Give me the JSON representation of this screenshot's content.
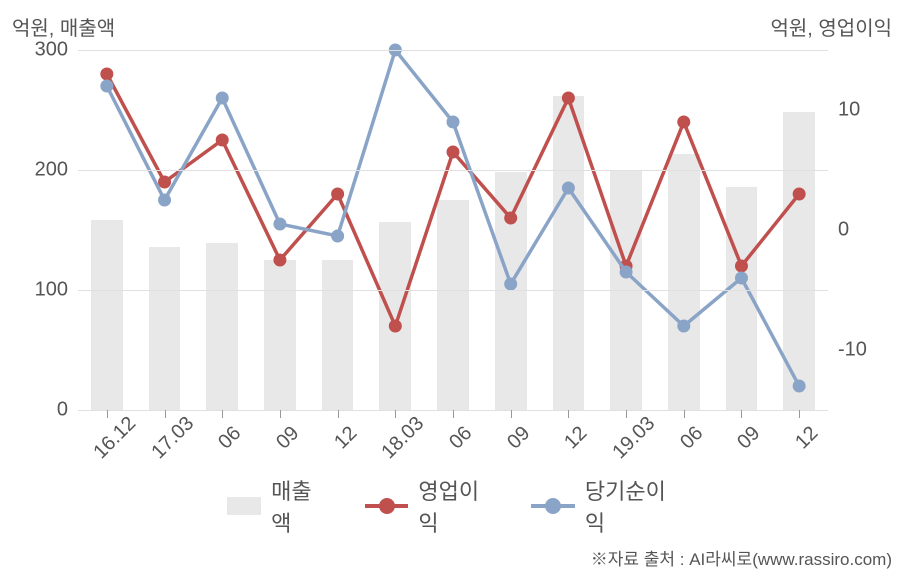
{
  "chart": {
    "type": "bar+line",
    "left_axis_title": "억원, 매출액",
    "right_axis_title": "억원, 영업이익",
    "left_axis": {
      "min": 0,
      "max": 300,
      "ticks": [
        0,
        100,
        200,
        300
      ]
    },
    "right_axis": {
      "min": -15,
      "max": 15,
      "ticks": [
        -10,
        0,
        10
      ]
    },
    "categories": [
      "16.12",
      "17.03",
      "06",
      "09",
      "12",
      "18.03",
      "06",
      "09",
      "12",
      "19.03",
      "06",
      "09",
      "12"
    ],
    "bars": {
      "label": "매출액",
      "color": "#e8e8e8",
      "width": 0.55,
      "values": [
        158,
        136,
        139,
        125,
        125,
        157,
        175,
        198,
        262,
        199,
        213,
        186,
        248
      ]
    },
    "series": [
      {
        "label": "영업이익",
        "color": "#c0504d",
        "line_width": 3.5,
        "marker_size": 6,
        "axis": "right",
        "values": [
          13,
          4,
          7.5,
          -2.5,
          3,
          -8,
          6.5,
          1,
          11,
          -3,
          9,
          -3,
          3
        ]
      },
      {
        "label": "당기순이익",
        "color": "#8aa4c8",
        "line_width": 3.5,
        "marker_size": 6,
        "axis": "right",
        "values": [
          12,
          2.5,
          11,
          0.5,
          -0.5,
          15,
          9,
          -4.5,
          3.5,
          -3.5,
          -8,
          -4,
          -13
        ]
      }
    ],
    "background_color": "#ffffff",
    "grid_color": "#e0e0e0",
    "tick_font_size": 20,
    "title_font_size": 20,
    "legend_font_size": 22
  },
  "citation": "※자료 출처 : AI라씨로(www.rassiro.com)"
}
